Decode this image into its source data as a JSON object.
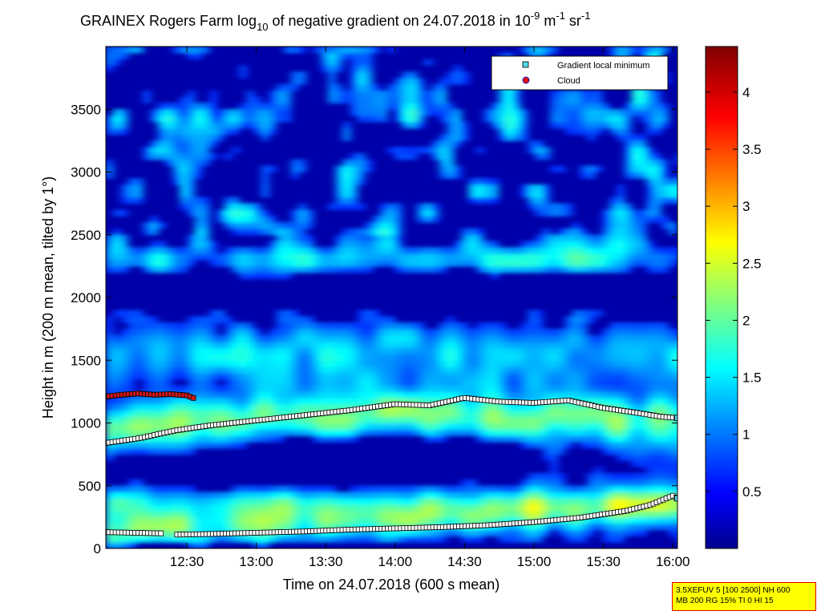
{
  "chart_data": {
    "type": "heatmap",
    "title_main": "GRAINEX Rogers Farm log",
    "title_sub": "10",
    "title_mid": " of negative gradient on 24.07.2018 in 10",
    "title_exp1": "-9",
    "title_unit1": " m",
    "title_exp2": "-1",
    "title_unit2": " sr",
    "title_exp3": "-1",
    "xlabel": "Time on 24.07.2018 (600 s mean)",
    "ylabel": "Height in m (200 m mean, tilted by 1°)",
    "x_ticks": [
      "12:30",
      "13:00",
      "13:30",
      "14:00",
      "14:30",
      "15:00",
      "15:30",
      "16:00"
    ],
    "x_tick_minutes": [
      750,
      780,
      810,
      840,
      870,
      900,
      930,
      960
    ],
    "xlim_minutes": [
      715,
      962
    ],
    "y_ticks": [
      0,
      500,
      1000,
      1500,
      2000,
      2500,
      3000,
      3500
    ],
    "ylim": [
      0,
      4000
    ],
    "colorbar_ticks": [
      0.5,
      1,
      1.5,
      2,
      2.5,
      3,
      3.5,
      4
    ],
    "colorbar_labels": [
      "0.5",
      "1",
      "1.5",
      "2",
      "2.5",
      "3",
      "3.5",
      "4"
    ],
    "colorbar_range": [
      0,
      4.4
    ],
    "colormap": "jet",
    "legend": {
      "placement": "top-right",
      "entries": [
        {
          "label": "Gradient local minimum",
          "marker": "square",
          "color": "#4fd7e8"
        },
        {
          "label": "Cloud",
          "marker": "circle",
          "color": "#e01010"
        }
      ]
    },
    "series": [
      {
        "name": "Gradient local minimum (lower)",
        "x": [
          715,
          740,
          745,
          760,
          780,
          800,
          820,
          840,
          860,
          880,
          900,
          920,
          940,
          950,
          960,
          962
        ],
        "y": [
          130,
          120,
          110,
          115,
          125,
          135,
          150,
          160,
          170,
          185,
          210,
          245,
          300,
          345,
          420,
          400
        ]
      },
      {
        "name": "Gradient local minimum (upper)",
        "x": [
          715,
          730,
          745,
          760,
          780,
          800,
          820,
          840,
          855,
          870,
          885,
          900,
          915,
          930,
          945,
          955,
          962
        ],
        "y": [
          840,
          880,
          940,
          980,
          1020,
          1060,
          1100,
          1150,
          1140,
          1200,
          1170,
          1160,
          1180,
          1120,
          1080,
          1050,
          1040
        ]
      },
      {
        "name": "Cloud",
        "x": [
          715,
          722,
          729,
          736,
          743,
          750,
          754
        ],
        "y": [
          1210,
          1225,
          1235,
          1225,
          1230,
          1220,
          1190
        ]
      }
    ]
  },
  "info_box": {
    "line1": "3.5XEFUV 5 [100 2500] NH 600",
    "line2": "MB 200 RG 15% TI 0 HI 15"
  }
}
